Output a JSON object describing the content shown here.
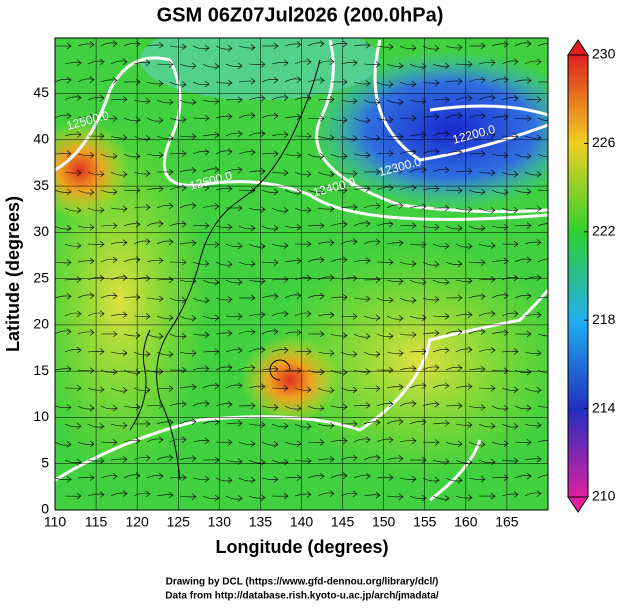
{
  "title": "GSM 06Z07Jul2026 (200.0hPa)",
  "plot": {
    "x_label": "Longitude (degrees)",
    "y_label": "Latitude  (degrees)",
    "xlim": [
      110,
      170
    ],
    "ylim": [
      0,
      51
    ],
    "xticks": [
      110,
      115,
      120,
      125,
      130,
      135,
      140,
      145,
      150,
      155,
      160,
      165
    ],
    "yticks": [
      0,
      5,
      10,
      15,
      20,
      25,
      30,
      35,
      40,
      45
    ],
    "contour_labels": [
      {
        "text": "12500.0",
        "lon": 129,
        "lat": 35.5
      },
      {
        "text": "12400.0",
        "lon": 144,
        "lat": 34.8
      },
      {
        "text": "12300.0",
        "lon": 152,
        "lat": 37
      },
      {
        "text": "12200.0",
        "lon": 161,
        "lat": 40.5
      },
      {
        "text": "12500.0",
        "lon": 114,
        "lat": 42
      }
    ]
  },
  "colorbar": {
    "lim": [
      210,
      230
    ],
    "ticks": [
      210,
      214,
      218,
      222,
      226,
      230
    ]
  },
  "credits": [
    "Drawing by DCL (https://www.gfd-dennou.org/library/dcl/)",
    "Data from http://database.rish.kyoto-u.ac.jp/arch/jmadata/"
  ]
}
